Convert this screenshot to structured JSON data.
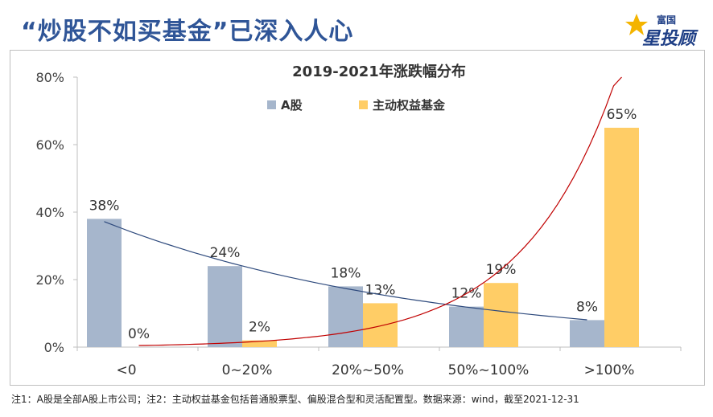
{
  "headline": "“炒股不如买基金”已深入人心",
  "brand": {
    "top": "富国",
    "main": "星投顾"
  },
  "chart_data": {
    "type": "bar",
    "title": "2019-2021年涨跌幅分布",
    "categories": [
      "<0",
      "0~20%",
      "20%~50%",
      "50%~100%",
      ">100%"
    ],
    "series": [
      {
        "name": "A股",
        "values": [
          38,
          24,
          18,
          12,
          8
        ],
        "labels": [
          "38%",
          "24%",
          "18%",
          "12%",
          "8%"
        ],
        "color": "#a6b6cc"
      },
      {
        "name": "主动权益基金",
        "values": [
          0,
          2,
          13,
          19,
          65
        ],
        "labels": [
          "0%",
          "2%",
          "13%",
          "19%",
          "65%"
        ],
        "color": "#ffcd66"
      }
    ],
    "ylim": [
      0,
      80
    ],
    "yticks": [
      "0%",
      "20%",
      "40%",
      "60%",
      "80%"
    ],
    "trendlines": [
      {
        "series": "A股",
        "color": "#2e4a7d"
      },
      {
        "series": "主动权益基金",
        "color": "#c00000"
      }
    ],
    "xlabel": "",
    "ylabel": "",
    "legend": "top-center"
  },
  "footnote": "注1：A股是全部A股上市公司；注2：主动权益基金包括普通股票型、偏股混合型和灵活配置型。数据来源：wind，截至2021-12-31"
}
